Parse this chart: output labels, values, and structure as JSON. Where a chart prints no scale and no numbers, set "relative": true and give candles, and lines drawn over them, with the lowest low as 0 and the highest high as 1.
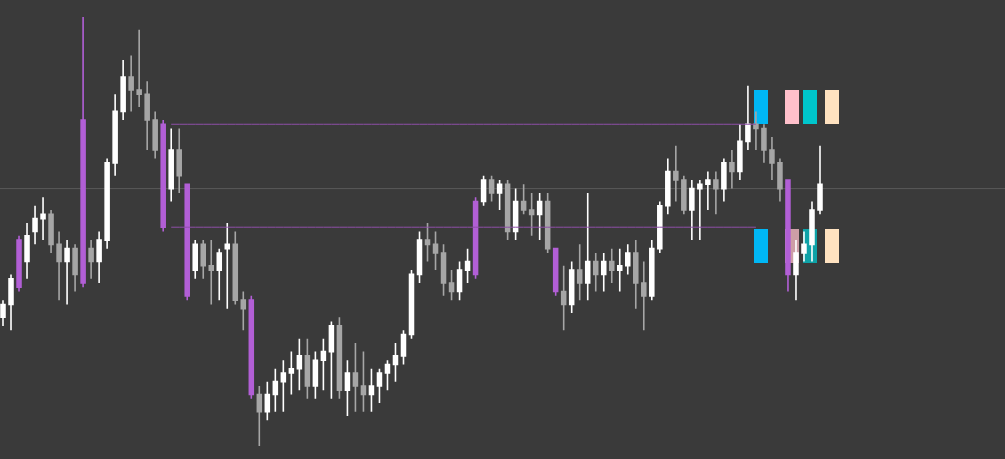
{
  "chart_data": {
    "type": "candlestick",
    "relative": true,
    "categories": [
      null,
      null,
      null,
      null,
      null,
      null,
      null,
      null,
      null,
      null,
      null,
      null,
      null,
      null,
      null,
      null,
      null,
      null,
      null,
      null,
      null,
      null,
      null,
      null,
      null,
      null,
      null,
      null,
      null,
      null,
      null,
      null,
      null,
      null,
      null,
      null,
      null,
      null,
      null,
      null,
      null,
      null,
      null,
      null,
      null,
      null,
      null,
      null,
      null,
      null,
      null,
      null,
      null,
      null,
      null,
      null,
      null,
      null,
      null,
      null,
      null,
      null,
      null,
      null,
      null,
      null,
      null,
      null,
      null,
      null,
      null,
      null,
      null,
      null,
      null,
      null,
      null,
      null,
      null,
      null,
      null,
      null,
      null,
      null,
      null,
      null,
      null,
      null,
      null,
      null,
      null,
      null,
      null,
      null,
      null,
      null,
      null,
      null,
      null,
      null,
      null,
      null,
      null
    ],
    "ohlc": [
      [
        0.3,
        0.34,
        0.28,
        0.33
      ],
      [
        0.33,
        0.4,
        0.27,
        0.39
      ],
      [
        0.37,
        0.49,
        0.36,
        0.48
      ],
      [
        0.43,
        0.52,
        0.39,
        0.49
      ],
      [
        0.5,
        0.56,
        0.47,
        0.53
      ],
      [
        0.53,
        0.58,
        0.48,
        0.54
      ],
      [
        0.54,
        0.55,
        0.45,
        0.47
      ],
      [
        0.47,
        0.5,
        0.34,
        0.43
      ],
      [
        0.43,
        0.48,
        0.33,
        0.46
      ],
      [
        0.46,
        0.47,
        0.36,
        0.4
      ],
      [
        0.38,
        1.0,
        0.37,
        0.76
      ],
      [
        0.46,
        0.48,
        0.39,
        0.43
      ],
      [
        0.43,
        0.5,
        0.38,
        0.48
      ],
      [
        0.48,
        0.67,
        0.46,
        0.66
      ],
      [
        0.66,
        0.82,
        0.63,
        0.78
      ],
      [
        0.78,
        0.9,
        0.76,
        0.86
      ],
      [
        0.86,
        0.91,
        0.78,
        0.83
      ],
      [
        0.83,
        0.97,
        0.79,
        0.82
      ],
      [
        0.82,
        0.85,
        0.69,
        0.76
      ],
      [
        0.76,
        0.78,
        0.67,
        0.69
      ],
      [
        0.75,
        0.76,
        0.5,
        0.51
      ],
      [
        0.6,
        0.74,
        0.57,
        0.69
      ],
      [
        0.69,
        0.74,
        0.59,
        0.63
      ],
      [
        0.61,
        0.61,
        0.34,
        0.35
      ],
      [
        0.41,
        0.48,
        0.39,
        0.47
      ],
      [
        0.47,
        0.48,
        0.39,
        0.42
      ],
      [
        0.42,
        0.48,
        0.33,
        0.41
      ],
      [
        0.41,
        0.46,
        0.34,
        0.45
      ],
      [
        0.46,
        0.52,
        0.32,
        0.47
      ],
      [
        0.47,
        0.5,
        0.33,
        0.34
      ],
      [
        0.34,
        0.36,
        0.27,
        0.32
      ],
      [
        0.34,
        0.35,
        0.11,
        0.12
      ],
      [
        0.12,
        0.14,
        0,
        0.08
      ],
      [
        0.08,
        0.15,
        0.06,
        0.12
      ],
      [
        0.12,
        0.18,
        0.08,
        0.15
      ],
      [
        0.15,
        0.2,
        0.08,
        0.17
      ],
      [
        0.17,
        0.22,
        0.12,
        0.18
      ],
      [
        0.18,
        0.25,
        0.13,
        0.21
      ],
      [
        0.21,
        0.25,
        0.11,
        0.14
      ],
      [
        0.14,
        0.22,
        0.11,
        0.2
      ],
      [
        0.2,
        0.25,
        0.13,
        0.22
      ],
      [
        0.22,
        0.29,
        0.11,
        0.28
      ],
      [
        0.28,
        0.3,
        0.11,
        0.13
      ],
      [
        0.13,
        0.2,
        0.07,
        0.17
      ],
      [
        0.17,
        0.24,
        0.08,
        0.14
      ],
      [
        0.14,
        0.22,
        0.08,
        0.12
      ],
      [
        0.12,
        0.18,
        0.08,
        0.14
      ],
      [
        0.14,
        0.18,
        0.1,
        0.17
      ],
      [
        0.17,
        0.2,
        0.13,
        0.19
      ],
      [
        0.19,
        0.24,
        0.15,
        0.21
      ],
      [
        0.21,
        0.27,
        0.19,
        0.26
      ],
      [
        0.26,
        0.41,
        0.25,
        0.4
      ],
      [
        0.4,
        0.5,
        0.38,
        0.48
      ],
      [
        0.48,
        0.52,
        0.43,
        0.47
      ],
      [
        0.47,
        0.5,
        0.41,
        0.45
      ],
      [
        0.45,
        0.47,
        0.35,
        0.38
      ],
      [
        0.38,
        0.41,
        0.34,
        0.36
      ],
      [
        0.36,
        0.43,
        0.34,
        0.41
      ],
      [
        0.41,
        0.46,
        0.38,
        0.43
      ],
      [
        0.4,
        0.58,
        0.39,
        0.57
      ],
      [
        0.57,
        0.63,
        0.56,
        0.62
      ],
      [
        0.62,
        0.63,
        0.57,
        0.59
      ],
      [
        0.59,
        0.62,
        0.55,
        0.61
      ],
      [
        0.61,
        0.62,
        0.48,
        0.5
      ],
      [
        0.5,
        0.6,
        0.48,
        0.57
      ],
      [
        0.57,
        0.61,
        0.54,
        0.55
      ],
      [
        0.55,
        0.59,
        0.49,
        0.54
      ],
      [
        0.54,
        0.59,
        0.48,
        0.57
      ],
      [
        0.57,
        0.59,
        0.45,
        0.46
      ],
      [
        0.46,
        0.46,
        0.35,
        0.36
      ],
      [
        0.36,
        0.42,
        0.27,
        0.33
      ],
      [
        0.33,
        0.43,
        0.31,
        0.41
      ],
      [
        0.41,
        0.47,
        0.34,
        0.38
      ],
      [
        0.38,
        0.59,
        0.34,
        0.43
      ],
      [
        0.43,
        0.45,
        0.36,
        0.4
      ],
      [
        0.4,
        0.45,
        0.36,
        0.43
      ],
      [
        0.43,
        0.46,
        0.38,
        0.41
      ],
      [
        0.41,
        0.46,
        0.36,
        0.42
      ],
      [
        0.42,
        0.47,
        0.4,
        0.45
      ],
      [
        0.45,
        0.48,
        0.32,
        0.38
      ],
      [
        0.38,
        0.43,
        0.27,
        0.35
      ],
      [
        0.35,
        0.48,
        0.34,
        0.46
      ],
      [
        0.46,
        0.57,
        0.45,
        0.56
      ],
      [
        0.56,
        0.67,
        0.54,
        0.64
      ],
      [
        0.64,
        0.7,
        0.57,
        0.62
      ],
      [
        0.62,
        0.63,
        0.54,
        0.55
      ],
      [
        0.55,
        0.62,
        0.48,
        0.6
      ],
      [
        0.6,
        0.62,
        0.48,
        0.61
      ],
      [
        0.61,
        0.64,
        0.55,
        0.62
      ],
      [
        0.62,
        0.64,
        0.54,
        0.6
      ],
      [
        0.6,
        0.67,
        0.57,
        0.66
      ],
      [
        0.66,
        0.69,
        0.6,
        0.64
      ],
      [
        0.64,
        0.75,
        0.62,
        0.71
      ],
      [
        0.71,
        0.84,
        0.69,
        0.75
      ],
      [
        0.75,
        0.78,
        0.69,
        0.74
      ],
      [
        0.74,
        0.75,
        0.66,
        0.69
      ],
      [
        0.69,
        0.72,
        0.62,
        0.66
      ],
      [
        0.66,
        0.67,
        0.57,
        0.6
      ],
      [
        0.62,
        0.62,
        0.36,
        0.4
      ],
      [
        0.4,
        0.48,
        0.34,
        0.45
      ],
      [
        0.45,
        0.5,
        0.43,
        0.47
      ],
      [
        0.47,
        0.57,
        0.43,
        0.55
      ],
      [
        0.55,
        0.7,
        0.54,
        0.61
      ]
    ],
    "colors": [
      "#ffffff",
      "#ffffff",
      "#b25fd6",
      "#ffffff",
      "#ffffff",
      "#ffffff",
      "#a6a6a6",
      "#a6a6a6",
      "#ffffff",
      "#a6a6a6",
      "#b25fd6",
      "#a6a6a6",
      "#ffffff",
      "#ffffff",
      "#ffffff",
      "#ffffff",
      "#a6a6a6",
      "#a6a6a6",
      "#a6a6a6",
      "#a6a6a6",
      "#b25fd6",
      "#ffffff",
      "#a6a6a6",
      "#b25fd6",
      "#ffffff",
      "#a6a6a6",
      "#a6a6a6",
      "#ffffff",
      "#ffffff",
      "#a6a6a6",
      "#a6a6a6",
      "#b25fd6",
      "#a6a6a6",
      "#ffffff",
      "#ffffff",
      "#ffffff",
      "#ffffff",
      "#ffffff",
      "#a6a6a6",
      "#ffffff",
      "#ffffff",
      "#ffffff",
      "#a6a6a6",
      "#ffffff",
      "#a6a6a6",
      "#a6a6a6",
      "#ffffff",
      "#ffffff",
      "#ffffff",
      "#ffffff",
      "#ffffff",
      "#ffffff",
      "#ffffff",
      "#a6a6a6",
      "#a6a6a6",
      "#a6a6a6",
      "#a6a6a6",
      "#ffffff",
      "#ffffff",
      "#b25fd6",
      "#ffffff",
      "#a6a6a6",
      "#ffffff",
      "#a6a6a6",
      "#ffffff",
      "#a6a6a6",
      "#a6a6a6",
      "#ffffff",
      "#a6a6a6",
      "#b25fd6",
      "#a6a6a6",
      "#ffffff",
      "#a6a6a6",
      "#ffffff",
      "#a6a6a6",
      "#ffffff",
      "#a6a6a6",
      "#ffffff",
      "#ffffff",
      "#a6a6a6",
      "#a6a6a6",
      "#ffffff",
      "#ffffff",
      "#ffffff",
      "#a6a6a6",
      "#a6a6a6",
      "#ffffff",
      "#ffffff",
      "#ffffff",
      "#a6a6a6",
      "#ffffff",
      "#a6a6a6",
      "#ffffff",
      "#ffffff",
      "#a6a6a6",
      "#a6a6a6",
      "#a6a6a6",
      "#a6a6a6",
      "#b25fd6",
      "#ffffff",
      "#ffffff",
      "#ffffff",
      "#ffffff"
    ],
    "series": [
      {
        "type": "line",
        "color": "#8e4fa8",
        "values": [
          null,
          null,
          null,
          null,
          null,
          null,
          null,
          null,
          null,
          null,
          null,
          null,
          null,
          null,
          null,
          null,
          null,
          null,
          null,
          null,
          null,
          0.75,
          0.75,
          0.75,
          0.75,
          0.75,
          0.75,
          0.75,
          0.75,
          0.75,
          0.75,
          0.75,
          0.75,
          0.75,
          0.75,
          0.75,
          0.75,
          0.75,
          0.75,
          0.75,
          0.75,
          0.75,
          0.75,
          0.75,
          0.75,
          0.75,
          0.75,
          0.75,
          0.75,
          0.75,
          0.75,
          0.75,
          0.75,
          0.75,
          0.75,
          0.75,
          0.75,
          0.75,
          0.75,
          0.75,
          0.75,
          0.75,
          0.75,
          0.75,
          0.75,
          0.75,
          0.75,
          0.75,
          0.75,
          0.75,
          0.75,
          0.75,
          0.75,
          0.75,
          0.75,
          0.75,
          0.75,
          0.75,
          0.75,
          0.75,
          0.75,
          0.75,
          0.75,
          0.75,
          0.75,
          0.75,
          0.75,
          0.75,
          0.75,
          0.75,
          0.75,
          0.75,
          0.75,
          0.75,
          0.75,
          null,
          null,
          null,
          null,
          null,
          null,
          null,
          null
        ]
      },
      {
        "type": "line",
        "color": "#8e4fa8",
        "values": [
          null,
          null,
          null,
          null,
          null,
          null,
          null,
          null,
          null,
          null,
          null,
          null,
          null,
          null,
          null,
          null,
          null,
          null,
          null,
          null,
          null,
          0.51,
          0.51,
          0.51,
          0.51,
          0.51,
          0.51,
          0.51,
          0.51,
          0.51,
          0.51,
          0.51,
          0.51,
          0.51,
          0.51,
          0.51,
          0.51,
          0.51,
          0.51,
          0.51,
          0.51,
          0.51,
          0.51,
          0.51,
          0.51,
          0.51,
          0.51,
          0.51,
          0.51,
          0.51,
          0.51,
          0.51,
          0.51,
          0.51,
          0.51,
          0.51,
          0.51,
          0.51,
          0.51,
          0.51,
          0.51,
          0.51,
          0.51,
          0.51,
          0.51,
          0.51,
          0.51,
          0.51,
          0.51,
          0.51,
          0.51,
          0.51,
          0.51,
          0.51,
          0.51,
          0.51,
          0.51,
          0.51,
          0.51,
          0.51,
          0.51,
          0.51,
          0.51,
          0.51,
          0.51,
          0.51,
          0.51,
          0.51,
          0.51,
          0.51,
          0.51,
          0.51,
          0.51,
          0.51,
          0.51,
          null,
          null,
          null,
          null,
          null,
          null,
          null,
          null
        ]
      }
    ],
    "ref_lines": [
      {
        "axis": "y",
        "value": 0.6,
        "color": "#5a5a5a"
      }
    ],
    "grid": false
  }
}
